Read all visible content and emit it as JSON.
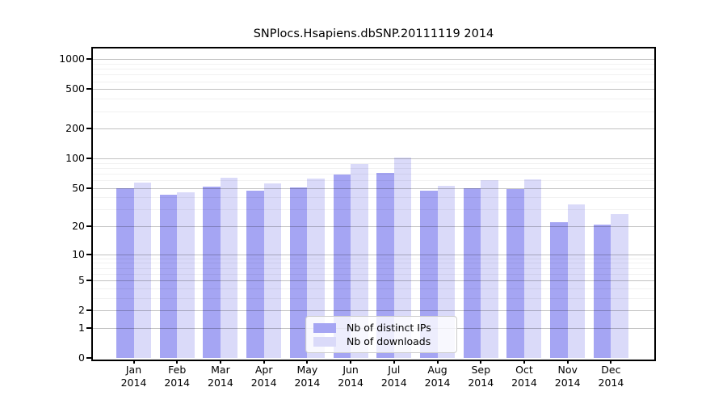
{
  "chart_data": {
    "type": "bar",
    "title": "SNPlocs.Hsapiens.dbSNP.20111119 2014",
    "categories": [
      "Jan",
      "Feb",
      "Mar",
      "Apr",
      "May",
      "Jun",
      "Jul",
      "Aug",
      "Sep",
      "Oct",
      "Nov",
      "Dec"
    ],
    "category_year": "2014",
    "series": [
      {
        "name": "Nb of distinct IPs",
        "color": "#a5a5f3",
        "values": [
          50,
          43,
          52,
          47,
          51,
          68,
          71,
          47,
          50,
          49,
          22,
          21
        ]
      },
      {
        "name": "Nb of downloads",
        "color": "#dadaf9",
        "values": [
          57,
          45,
          64,
          56,
          62,
          87,
          103,
          53,
          60,
          61,
          34,
          27
        ]
      }
    ],
    "y_scale": "log10(1+x)",
    "y_major_ticks": [
      0,
      1,
      2,
      5,
      10,
      20,
      50,
      100,
      200,
      500,
      1000
    ],
    "y_minor_ticks": [
      3,
      4,
      6,
      7,
      8,
      9,
      30,
      40,
      60,
      70,
      80,
      90,
      300,
      400,
      600,
      700,
      800,
      900
    ],
    "ylim": [
      0,
      1280
    ],
    "grid": true,
    "legend_position": "lower center",
    "colors": {
      "frame": "#000000",
      "major_grid": "#c3c3c3",
      "minor_grid": "#ececec",
      "background": "#ffffff"
    }
  }
}
